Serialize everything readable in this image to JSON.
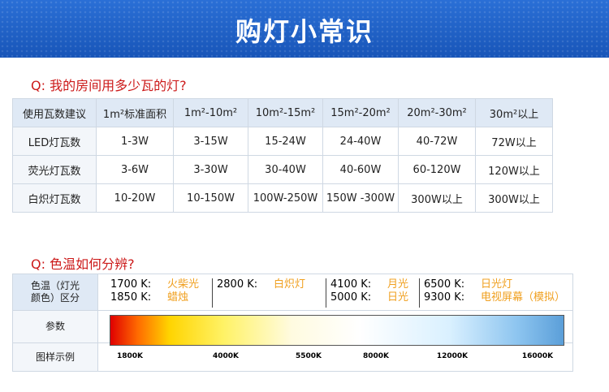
{
  "header": {
    "title": "购灯小常识"
  },
  "section1": {
    "question": "Q: 我的房间用多少瓦的灯?",
    "table": {
      "header": [
        "使用瓦数建议",
        "1m²标准面积",
        "1m²-10m²",
        "10m²-15m²",
        "15m²-20m²",
        "20m²-30m²",
        "30m²以上"
      ],
      "rows": [
        [
          "LED灯瓦数",
          "1-3W",
          "3-15W",
          "15-24W",
          "24-40W",
          "40-72W",
          "72W以上"
        ],
        [
          "荧光灯瓦数",
          "3-6W",
          "3-30W",
          "30-40W",
          "40-60W",
          "60-120W",
          "120W以上"
        ],
        [
          "白炽灯瓦数",
          "10-20W",
          "10-150W",
          "100W-250W",
          "150W -300W",
          "300W以上",
          "300W以上"
        ]
      ]
    }
  },
  "section2": {
    "question": "Q: 色温如何分辨?",
    "table": {
      "label_lines": [
        "色温（灯光",
        "颜色）区分"
      ],
      "param_label": "参数",
      "sample_label": "图样示例",
      "groups": [
        [
          {
            "temp": "1700 K:",
            "desc": "火柴光"
          },
          {
            "temp": "1850 K:",
            "desc": "蜡烛"
          }
        ],
        [
          {
            "temp": "2800 K:",
            "desc": "白炽灯"
          }
        ],
        [
          {
            "temp": "4100 K:",
            "desc": "月光"
          },
          {
            "temp": "5000 K:",
            "desc": "日光"
          }
        ],
        [
          {
            "temp": "6500 K:",
            "desc": "日光灯"
          },
          {
            "temp": "9300 K:",
            "desc": "电视屏幕（模拟）"
          }
        ]
      ],
      "scale": [
        "1800K",
        "4000K",
        "5500K",
        "8000K",
        "12000K",
        "16000K"
      ]
    }
  }
}
